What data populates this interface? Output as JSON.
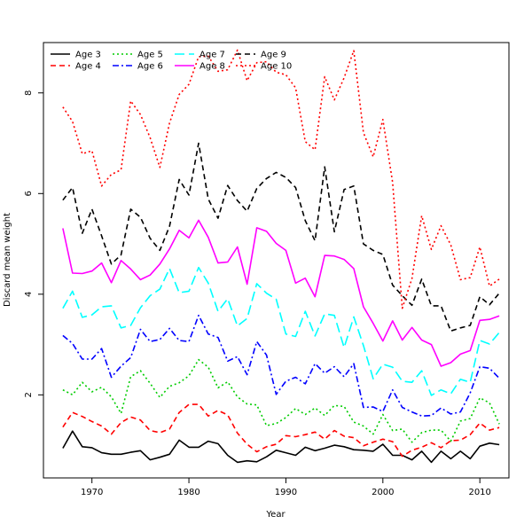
{
  "chart_data": {
    "type": "line",
    "xlabel": "Year",
    "ylabel": "Discard mean weight",
    "xlim": [
      1965,
      2013
    ],
    "ylim": [
      0.35,
      9.0
    ],
    "x_ticks": [
      1970,
      1980,
      1990,
      2000,
      2010
    ],
    "y_ticks": [
      2,
      4,
      6,
      8
    ],
    "grid": false,
    "legend_position": "top-left",
    "x": [
      1967,
      1968,
      1969,
      1970,
      1971,
      1972,
      1973,
      1974,
      1975,
      1976,
      1977,
      1978,
      1979,
      1980,
      1981,
      1982,
      1983,
      1984,
      1985,
      1986,
      1987,
      1988,
      1989,
      1990,
      1991,
      1992,
      1993,
      1994,
      1995,
      1996,
      1997,
      1998,
      1999,
      2000,
      2001,
      2002,
      2003,
      2004,
      2005,
      2006,
      2007,
      2008,
      2009,
      2010,
      2011,
      2012
    ],
    "series": [
      {
        "name": "Age 3",
        "color": "#000000",
        "dash": "solid",
        "values": [
          0.94,
          1.28,
          0.97,
          0.95,
          0.85,
          0.82,
          0.82,
          0.86,
          0.89,
          0.71,
          0.76,
          0.82,
          1.1,
          0.96,
          0.96,
          1.08,
          1.03,
          0.8,
          0.66,
          0.69,
          0.67,
          0.77,
          0.9,
          0.85,
          0.8,
          0.96,
          0.89,
          0.94,
          1.0,
          0.97,
          0.91,
          0.9,
          0.88,
          1.02,
          0.8,
          0.8,
          0.71,
          0.88,
          0.66,
          0.88,
          0.73,
          0.88,
          0.73,
          0.98,
          1.04,
          1.01
        ]
      },
      {
        "name": "Age 4",
        "color": "#ff0000",
        "dash": "dashed",
        "values": [
          1.36,
          1.65,
          1.57,
          1.47,
          1.38,
          1.22,
          1.45,
          1.56,
          1.5,
          1.29,
          1.25,
          1.32,
          1.65,
          1.81,
          1.81,
          1.58,
          1.69,
          1.6,
          1.24,
          1.02,
          0.87,
          0.97,
          1.02,
          1.19,
          1.17,
          1.21,
          1.26,
          1.12,
          1.29,
          1.18,
          1.15,
          0.99,
          1.06,
          1.12,
          1.07,
          0.78,
          0.9,
          0.96,
          1.05,
          0.95,
          1.09,
          1.1,
          1.21,
          1.44,
          1.3,
          1.35
        ]
      },
      {
        "name": "Age 5",
        "color": "#00cc00",
        "dash": "dotted",
        "values": [
          2.1,
          2.0,
          2.25,
          2.06,
          2.15,
          1.96,
          1.63,
          2.36,
          2.48,
          2.23,
          1.95,
          2.17,
          2.24,
          2.38,
          2.7,
          2.55,
          2.14,
          2.26,
          1.96,
          1.82,
          1.8,
          1.39,
          1.43,
          1.55,
          1.73,
          1.61,
          1.74,
          1.59,
          1.79,
          1.77,
          1.46,
          1.38,
          1.22,
          1.61,
          1.29,
          1.32,
          1.06,
          1.25,
          1.3,
          1.3,
          1.08,
          1.48,
          1.53,
          1.94,
          1.84,
          1.42
        ]
      },
      {
        "name": "Age 6",
        "color": "#0000ff",
        "dash": "dashdot",
        "values": [
          3.18,
          3.02,
          2.71,
          2.71,
          2.92,
          2.35,
          2.57,
          2.74,
          3.3,
          3.06,
          3.1,
          3.32,
          3.08,
          3.06,
          3.58,
          3.21,
          3.14,
          2.67,
          2.76,
          2.4,
          3.06,
          2.79,
          2.01,
          2.27,
          2.35,
          2.22,
          2.62,
          2.43,
          2.56,
          2.36,
          2.62,
          1.75,
          1.76,
          1.67,
          2.1,
          1.75,
          1.66,
          1.58,
          1.59,
          1.74,
          1.62,
          1.66,
          2.04,
          2.56,
          2.53,
          2.33
        ]
      },
      {
        "name": "Age 7",
        "color": "#00ffff",
        "dash": "longdash",
        "values": [
          3.72,
          4.06,
          3.54,
          3.59,
          3.75,
          3.77,
          3.33,
          3.38,
          3.73,
          3.97,
          4.1,
          4.51,
          4.03,
          4.06,
          4.53,
          4.22,
          3.66,
          3.91,
          3.37,
          3.52,
          4.21,
          4.02,
          3.9,
          3.21,
          3.16,
          3.66,
          3.17,
          3.61,
          3.58,
          2.94,
          3.55,
          2.98,
          2.32,
          2.61,
          2.55,
          2.27,
          2.25,
          2.48,
          1.99,
          2.1,
          2.02,
          2.31,
          2.25,
          3.08,
          3.01,
          3.24
        ]
      },
      {
        "name": "Age 8",
        "color": "#ff00ff",
        "dash": "solid",
        "values": [
          5.31,
          4.42,
          4.41,
          4.46,
          4.62,
          4.23,
          4.67,
          4.5,
          4.29,
          4.38,
          4.6,
          4.9,
          5.27,
          5.12,
          5.47,
          5.13,
          4.62,
          4.64,
          4.94,
          4.2,
          5.32,
          5.25,
          5.01,
          4.87,
          4.22,
          4.32,
          3.95,
          4.77,
          4.76,
          4.69,
          4.51,
          3.75,
          3.42,
          3.07,
          3.47,
          3.09,
          3.34,
          3.09,
          3.0,
          2.57,
          2.64,
          2.81,
          2.88,
          3.48,
          3.5,
          3.57
        ]
      },
      {
        "name": "Age 9",
        "color": "#000000",
        "dash": "dashed",
        "values": [
          5.87,
          6.12,
          5.21,
          5.69,
          5.16,
          4.6,
          4.78,
          5.69,
          5.53,
          5.11,
          4.87,
          5.35,
          6.28,
          5.97,
          7.0,
          5.89,
          5.51,
          6.16,
          5.86,
          5.65,
          6.1,
          6.3,
          6.42,
          6.32,
          6.12,
          5.46,
          5.06,
          6.53,
          5.24,
          6.08,
          6.15,
          5.0,
          4.87,
          4.79,
          4.18,
          3.97,
          3.78,
          4.3,
          3.77,
          3.77,
          3.27,
          3.33,
          3.38,
          3.95,
          3.79,
          4.02
        ]
      },
      {
        "name": "Age 10",
        "color": "#ff0000",
        "dash": "dotted",
        "values": [
          7.72,
          7.43,
          6.79,
          6.85,
          6.15,
          6.38,
          6.47,
          7.84,
          7.57,
          7.11,
          6.52,
          7.4,
          7.97,
          8.17,
          8.72,
          8.73,
          8.43,
          8.46,
          8.85,
          8.24,
          8.6,
          8.62,
          8.41,
          8.36,
          8.1,
          7.03,
          6.87,
          8.32,
          7.86,
          8.3,
          8.84,
          7.21,
          6.73,
          7.47,
          6.22,
          3.72,
          4.31,
          5.56,
          4.89,
          5.36,
          4.98,
          4.29,
          4.33,
          4.94,
          4.16,
          4.3
        ]
      }
    ]
  }
}
